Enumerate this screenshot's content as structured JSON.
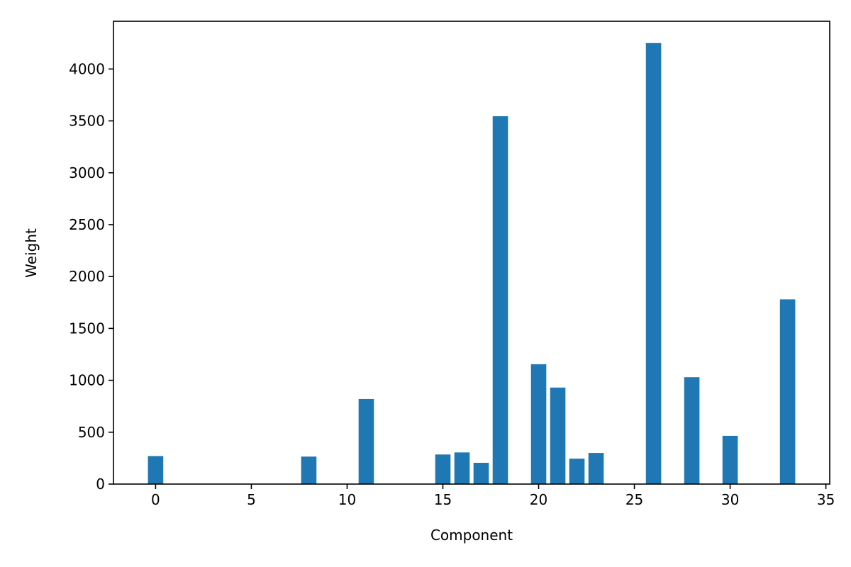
{
  "chart_data": {
    "type": "bar",
    "title": "",
    "xlabel": "Component",
    "ylabel": "Weight",
    "x": [
      0,
      8,
      11,
      15,
      16,
      17,
      18,
      20,
      21,
      22,
      23,
      26,
      28,
      30,
      33
    ],
    "values": [
      270,
      265,
      820,
      285,
      305,
      205,
      3545,
      1155,
      930,
      245,
      300,
      4250,
      1030,
      465,
      1780
    ],
    "xlim": [
      -2.2,
      35.2
    ],
    "ylim": [
      0,
      4460
    ],
    "xticks": [
      0,
      5,
      10,
      15,
      20,
      25,
      30,
      35
    ],
    "yticks": [
      0,
      500,
      1000,
      1500,
      2000,
      2500,
      3000,
      3500,
      4000
    ],
    "bar_width": 0.8,
    "grid": false,
    "colors": {
      "bar": "#1f77b4",
      "axis": "#000000",
      "background": "#ffffff"
    }
  }
}
